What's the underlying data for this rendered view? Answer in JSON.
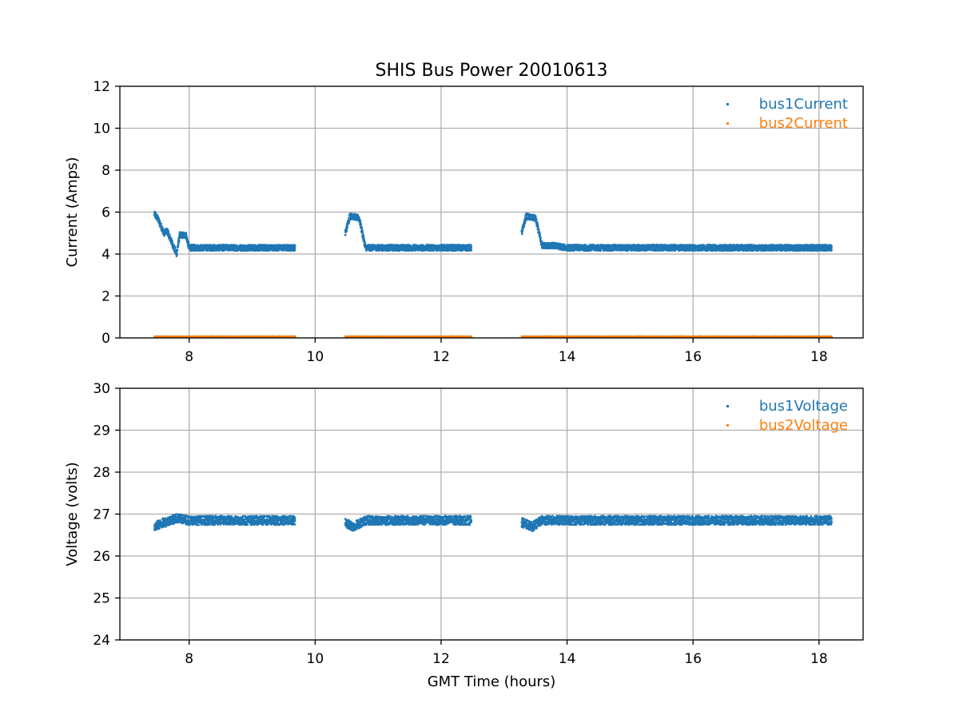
{
  "figure": {
    "title": "SHIS Bus Power 20010613"
  },
  "colors": {
    "bus1": "#1f77b4",
    "bus2": "#ff7f0e"
  },
  "chart_data": [
    {
      "type": "scatter",
      "title": "SHIS Bus Power 20010613",
      "xlabel": "",
      "ylabel": "Current (Amps)",
      "xlim": [
        6.9,
        18.7
      ],
      "ylim": [
        0,
        12
      ],
      "xticks": [
        8,
        10,
        12,
        14,
        16,
        18
      ],
      "yticks": [
        0,
        2,
        4,
        6,
        8,
        10,
        12
      ],
      "grid": true,
      "legend_position": "top-right",
      "series": [
        {
          "name": "bus1Current",
          "color": "#1f77b4",
          "segments": [
            {
              "x": [
                7.45,
                7.5,
                7.6,
                7.65,
                7.8,
                7.85,
                7.95,
                8.0,
                8.5,
                9.0,
                9.5,
                9.68
              ],
              "y": [
                5.9,
                5.7,
                5.0,
                5.1,
                4.0,
                4.9,
                4.9,
                4.3,
                4.3,
                4.3,
                4.3,
                4.3
              ]
            },
            {
              "x": [
                10.48,
                10.55,
                10.6,
                10.7,
                10.8,
                11.0,
                11.5,
                12.0,
                12.48
              ],
              "y": [
                5.0,
                5.8,
                5.8,
                5.7,
                4.3,
                4.3,
                4.3,
                4.3,
                4.3
              ]
            },
            {
              "x": [
                13.28,
                13.35,
                13.5,
                13.6,
                13.8,
                14.0,
                15.0,
                16.0,
                17.0,
                18.0,
                18.2
              ],
              "y": [
                5.0,
                5.8,
                5.7,
                4.4,
                4.4,
                4.3,
                4.3,
                4.3,
                4.3,
                4.3,
                4.3
              ]
            }
          ]
        },
        {
          "name": "bus2Current",
          "color": "#ff7f0e",
          "segments": [
            {
              "x": [
                7.45,
                9.68
              ],
              "y": [
                0.05,
                0.05
              ]
            },
            {
              "x": [
                10.48,
                12.48
              ],
              "y": [
                0.05,
                0.05
              ]
            },
            {
              "x": [
                13.28,
                18.2
              ],
              "y": [
                0.05,
                0.05
              ]
            }
          ]
        }
      ]
    },
    {
      "type": "scatter",
      "title": "",
      "xlabel": "GMT Time (hours)",
      "ylabel": "Voltage (volts)",
      "xlim": [
        6.9,
        18.7
      ],
      "ylim": [
        24,
        30
      ],
      "xticks": [
        8,
        10,
        12,
        14,
        16,
        18
      ],
      "yticks": [
        24,
        25,
        26,
        27,
        28,
        29,
        30
      ],
      "grid": true,
      "legend_position": "top-right",
      "series": [
        {
          "name": "bus1Voltage",
          "color": "#1f77b4",
          "segments": [
            {
              "x": [
                7.45,
                7.6,
                7.8,
                8.0,
                8.5,
                9.0,
                9.68
              ],
              "y": [
                26.7,
                26.8,
                26.9,
                26.85,
                26.85,
                26.85,
                26.85
              ]
            },
            {
              "x": [
                10.48,
                10.6,
                10.8,
                11.0,
                12.0,
                12.48
              ],
              "y": [
                26.8,
                26.7,
                26.85,
                26.85,
                26.85,
                26.85
              ]
            },
            {
              "x": [
                13.28,
                13.45,
                13.6,
                14.0,
                16.0,
                18.2
              ],
              "y": [
                26.8,
                26.7,
                26.85,
                26.85,
                26.85,
                26.85
              ]
            }
          ]
        },
        {
          "name": "bus2Voltage",
          "color": "#ff7f0e",
          "segments": []
        }
      ]
    }
  ]
}
